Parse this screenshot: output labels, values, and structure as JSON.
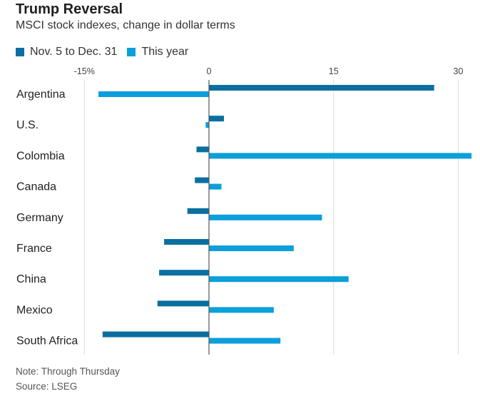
{
  "title": "Trump Reversal",
  "subtitle": "MSCI stock indexes, change in dollar terms",
  "colors": {
    "series_dark": "#0a6fa0",
    "series_light": "#0b9fdc",
    "grid": "#dcdcdc",
    "zero_line": "#555555"
  },
  "notes": {
    "note": "Note: Through Thursday",
    "source": "Source: LSEG"
  },
  "chart_data": {
    "type": "bar",
    "orientation": "horizontal",
    "categories": [
      "Argentina",
      "U.S.",
      "Colombia",
      "Canada",
      "Germany",
      "France",
      "China",
      "Mexico",
      "South Africa"
    ],
    "series": [
      {
        "name": "Nov. 5 to Dec. 31",
        "color": "#0a6fa0",
        "values": [
          27.1,
          1.8,
          -1.5,
          -1.7,
          -2.6,
          -5.4,
          -6.0,
          -6.2,
          -12.8
        ]
      },
      {
        "name": "This year",
        "color": "#0b9fdc",
        "values": [
          -13.3,
          -0.4,
          31.6,
          1.5,
          13.6,
          10.2,
          16.8,
          7.8,
          8.6
        ]
      }
    ],
    "xlim": [
      -15,
      32
    ],
    "ticks": [
      -15,
      0,
      15,
      30
    ],
    "tick_labels": [
      "-15%",
      "0",
      "15",
      "30"
    ],
    "grid": "vertical",
    "legend_position": "top-left"
  }
}
